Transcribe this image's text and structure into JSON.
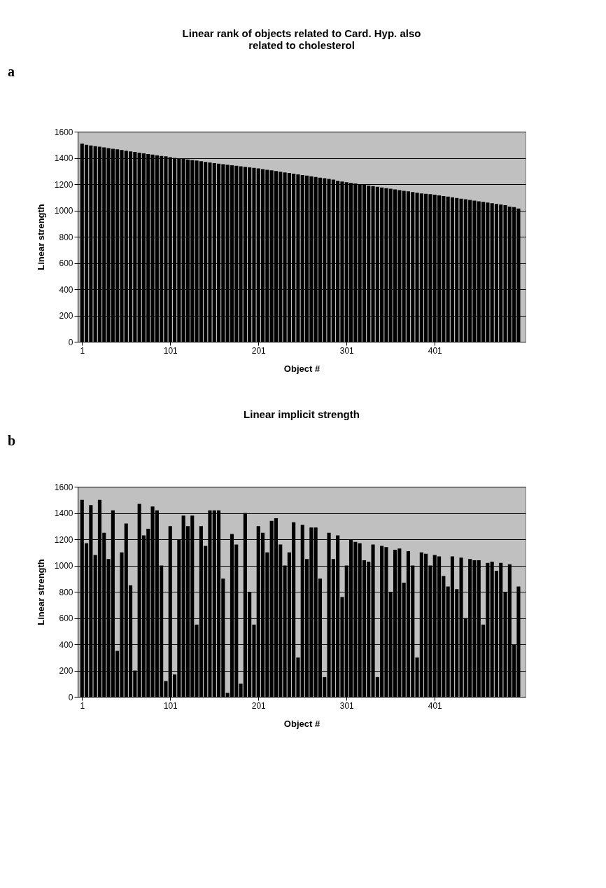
{
  "chart_data": [
    {
      "type": "bar",
      "title": "Linear rank of objects related to Card. Hyp. also related to cholesterol",
      "xlabel": "Object #",
      "ylabel": "Linear strength",
      "annotations": [
        "a"
      ],
      "color": "#000000",
      "grid": "y",
      "xlim": [
        0,
        500
      ],
      "xticks": [
        1,
        101,
        201,
        301,
        401
      ],
      "ylim": [
        0,
        1600
      ],
      "yticks": [
        0,
        200,
        400,
        600,
        800,
        1000,
        1200,
        1400,
        1600
      ],
      "x": [
        1,
        6,
        11,
        16,
        21,
        26,
        31,
        36,
        41,
        46,
        51,
        56,
        61,
        66,
        71,
        76,
        81,
        86,
        91,
        96,
        101,
        106,
        111,
        116,
        121,
        126,
        131,
        136,
        141,
        146,
        151,
        156,
        161,
        166,
        171,
        176,
        181,
        186,
        191,
        196,
        201,
        206,
        211,
        216,
        221,
        226,
        231,
        236,
        241,
        246,
        251,
        256,
        261,
        266,
        271,
        276,
        281,
        286,
        291,
        296,
        301,
        306,
        311,
        316,
        321,
        326,
        331,
        336,
        341,
        346,
        351,
        356,
        361,
        366,
        371,
        376,
        381,
        386,
        391,
        396,
        401,
        406,
        411,
        416,
        421,
        426,
        431,
        436,
        441,
        446,
        451,
        456,
        461,
        466,
        471,
        476,
        481,
        486,
        491,
        496
      ],
      "values": [
        1510,
        1500,
        1495,
        1490,
        1485,
        1480,
        1475,
        1470,
        1465,
        1460,
        1455,
        1450,
        1445,
        1440,
        1435,
        1430,
        1425,
        1420,
        1415,
        1412,
        1405,
        1400,
        1396,
        1392,
        1388,
        1384,
        1380,
        1375,
        1370,
        1365,
        1360,
        1356,
        1352,
        1348,
        1344,
        1340,
        1336,
        1332,
        1328,
        1324,
        1320,
        1315,
        1310,
        1305,
        1300,
        1295,
        1290,
        1285,
        1280,
        1275,
        1270,
        1265,
        1260,
        1255,
        1250,
        1245,
        1240,
        1235,
        1225,
        1220,
        1215,
        1210,
        1205,
        1200,
        1195,
        1190,
        1185,
        1180,
        1175,
        1170,
        1165,
        1160,
        1155,
        1150,
        1145,
        1140,
        1135,
        1130,
        1127,
        1124,
        1120,
        1115,
        1110,
        1105,
        1100,
        1095,
        1090,
        1085,
        1080,
        1075,
        1070,
        1065,
        1060,
        1055,
        1050,
        1045,
        1040,
        1030,
        1025,
        1015
      ]
    },
    {
      "type": "bar",
      "title": "Linear implicit strength",
      "xlabel": "Object #",
      "ylabel": "Linear strength",
      "annotations": [
        "b"
      ],
      "color": "#000000",
      "grid": "y",
      "xlim": [
        0,
        500
      ],
      "xticks": [
        1,
        101,
        201,
        301,
        401
      ],
      "ylim": [
        0,
        1600
      ],
      "yticks": [
        0,
        200,
        400,
        600,
        800,
        1000,
        1200,
        1400,
        1600
      ],
      "x": [
        1,
        6,
        11,
        16,
        21,
        26,
        31,
        36,
        41,
        46,
        51,
        56,
        61,
        66,
        71,
        76,
        81,
        86,
        91,
        96,
        101,
        106,
        111,
        116,
        121,
        126,
        131,
        136,
        141,
        146,
        151,
        156,
        161,
        166,
        171,
        176,
        181,
        186,
        191,
        196,
        201,
        206,
        211,
        216,
        221,
        226,
        231,
        236,
        241,
        246,
        251,
        256,
        261,
        266,
        271,
        276,
        281,
        286,
        291,
        296,
        301,
        306,
        311,
        316,
        321,
        326,
        331,
        336,
        341,
        346,
        351,
        356,
        361,
        366,
        371,
        376,
        381,
        386,
        391,
        396,
        401,
        406,
        411,
        416,
        421,
        426,
        431,
        436,
        441,
        446,
        451,
        456,
        461,
        466,
        471,
        476,
        481,
        486,
        491,
        496
      ],
      "values": [
        1500,
        1170,
        1460,
        1080,
        1500,
        1250,
        1050,
        1420,
        350,
        1100,
        1320,
        850,
        200,
        1470,
        1230,
        1280,
        1450,
        1420,
        1000,
        120,
        1300,
        170,
        1200,
        1380,
        1300,
        1380,
        550,
        1300,
        1150,
        1420,
        1420,
        1420,
        900,
        30,
        1240,
        1160,
        100,
        1400,
        800,
        550,
        1300,
        1250,
        1100,
        1340,
        1360,
        1160,
        1000,
        1100,
        1330,
        300,
        1310,
        1050,
        1290,
        1290,
        900,
        150,
        1250,
        1050,
        1230,
        760,
        1000,
        1200,
        1180,
        1170,
        1040,
        1030,
        1160,
        150,
        1150,
        1140,
        800,
        1120,
        1130,
        870,
        1110,
        1000,
        300,
        1100,
        1090,
        1000,
        1080,
        1070,
        920,
        840,
        1070,
        820,
        1060,
        600,
        1050,
        1040,
        1040,
        550,
        1020,
        1030,
        960,
        1020,
        800,
        1010,
        400,
        840
      ]
    }
  ]
}
